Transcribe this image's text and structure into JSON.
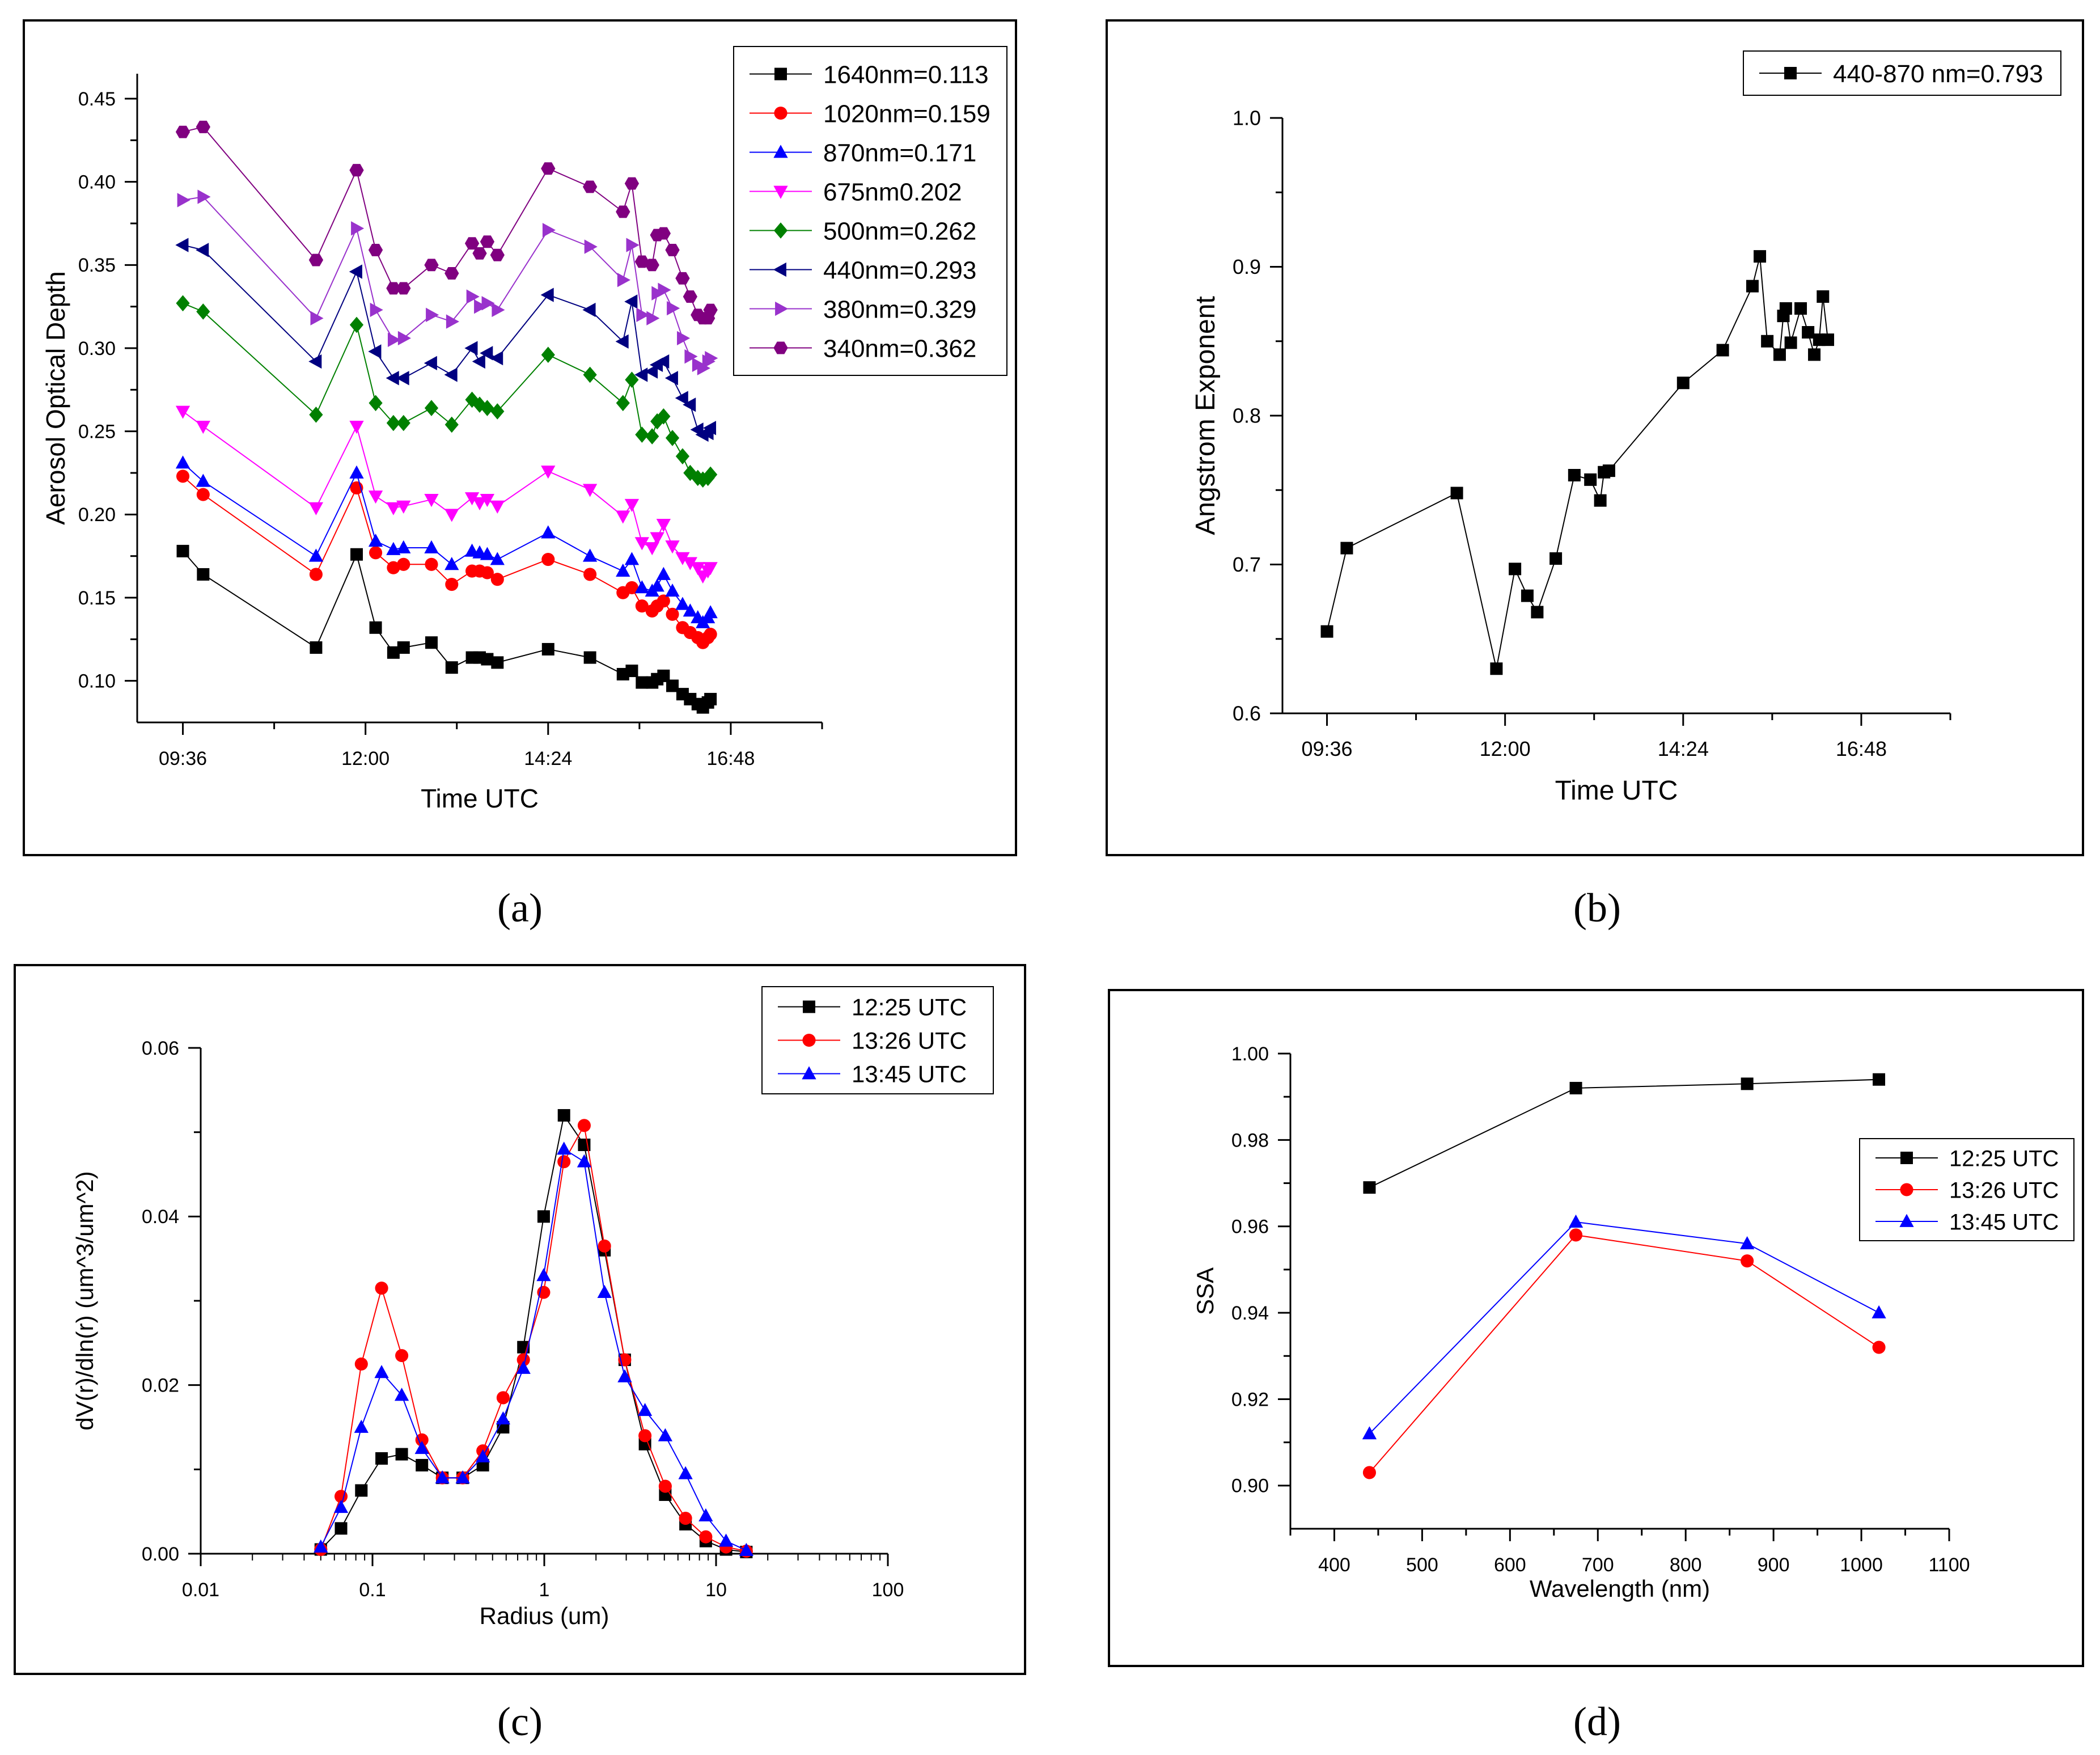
{
  "captions": [
    "(a)",
    "(b)",
    "(c)",
    "(d)"
  ],
  "chart_data": [
    {
      "type": "line",
      "xlabel": "Time UTC",
      "ylabel": "Aerosol Optical Depth",
      "xlim": [
        540,
        1080
      ],
      "ylim": [
        0.075,
        0.465
      ],
      "xticks": [
        576,
        720,
        864,
        1008
      ],
      "xtick_labels": [
        "09:36",
        "12:00",
        "14:24",
        "16:48"
      ],
      "yticks": [
        0.1,
        0.15,
        0.2,
        0.25,
        0.3,
        0.35,
        0.4,
        0.45
      ],
      "ytick_labels": [
        "0.10",
        "0.15",
        "0.20",
        "0.25",
        "0.30",
        "0.35",
        "0.40",
        "0.45"
      ],
      "legend_position": "top-right",
      "x": [
        576,
        592,
        681,
        713,
        728,
        742,
        750,
        772,
        788,
        804,
        810,
        816,
        824,
        864,
        897,
        923,
        930,
        938,
        946,
        950,
        955,
        962,
        970,
        976,
        982,
        986,
        990,
        992
      ],
      "series": [
        {
          "name": "1640nm=0.113",
          "color": "#000000",
          "marker": "square",
          "values": [
            0.178,
            0.164,
            0.12,
            0.176,
            0.132,
            0.117,
            0.12,
            0.123,
            0.108,
            0.114,
            0.114,
            0.113,
            0.111,
            0.119,
            0.114,
            0.104,
            0.106,
            0.099,
            0.099,
            0.101,
            0.103,
            0.097,
            0.092,
            0.089,
            0.086,
            0.084,
            0.087,
            0.089
          ]
        },
        {
          "name": "1020nm=0.159",
          "color": "#ff0000",
          "marker": "circle",
          "values": [
            0.223,
            0.212,
            0.164,
            0.216,
            0.177,
            0.168,
            0.17,
            0.17,
            0.158,
            0.166,
            0.166,
            0.165,
            0.161,
            0.173,
            0.164,
            0.153,
            0.156,
            0.145,
            0.142,
            0.145,
            0.148,
            0.14,
            0.132,
            0.129,
            0.126,
            0.123,
            0.126,
            0.128
          ]
        },
        {
          "name": "870nm=0.171",
          "color": "#0000ff",
          "marker": "triangle-up",
          "values": [
            0.231,
            0.22,
            0.175,
            0.225,
            0.184,
            0.179,
            0.18,
            0.18,
            0.17,
            0.178,
            0.177,
            0.176,
            0.173,
            0.189,
            0.175,
            0.166,
            0.173,
            0.156,
            0.154,
            0.157,
            0.164,
            0.154,
            0.146,
            0.142,
            0.138,
            0.135,
            0.138,
            0.141
          ]
        },
        {
          "name": "675nm0.202",
          "color": "#ff00ff",
          "marker": "triangle-down",
          "values": [
            0.262,
            0.253,
            0.204,
            0.253,
            0.211,
            0.204,
            0.205,
            0.209,
            0.2,
            0.21,
            0.207,
            0.209,
            0.205,
            0.226,
            0.215,
            0.199,
            0.206,
            0.183,
            0.18,
            0.186,
            0.194,
            0.181,
            0.174,
            0.171,
            0.168,
            0.163,
            0.166,
            0.168
          ]
        },
        {
          "name": "500nm=0.262",
          "color": "#008000",
          "marker": "diamond",
          "values": [
            0.327,
            0.322,
            0.26,
            0.314,
            0.267,
            0.255,
            0.255,
            0.264,
            0.254,
            0.269,
            0.266,
            0.264,
            0.262,
            0.296,
            0.284,
            0.267,
            0.281,
            0.248,
            0.247,
            0.256,
            0.259,
            0.246,
            0.235,
            0.225,
            0.222,
            0.221,
            0.222,
            0.224
          ]
        },
        {
          "name": "440nm=0.293",
          "color": "#000080",
          "marker": "triangle-left",
          "values": [
            0.362,
            0.359,
            0.292,
            0.346,
            0.298,
            0.282,
            0.282,
            0.291,
            0.284,
            0.3,
            0.292,
            0.297,
            0.294,
            0.332,
            0.323,
            0.304,
            0.328,
            0.284,
            0.286,
            0.29,
            0.292,
            0.282,
            0.27,
            0.266,
            0.251,
            0.248,
            0.249,
            0.252
          ]
        },
        {
          "name": "380nm=0.329",
          "color": "#9932cc",
          "marker": "triangle-right",
          "values": [
            0.389,
            0.391,
            0.318,
            0.372,
            0.323,
            0.305,
            0.306,
            0.32,
            0.316,
            0.331,
            0.325,
            0.327,
            0.323,
            0.371,
            0.361,
            0.341,
            0.362,
            0.32,
            0.318,
            0.333,
            0.335,
            0.324,
            0.306,
            0.295,
            0.29,
            0.288,
            0.292,
            0.294
          ]
        },
        {
          "name": "340nm=0.362",
          "color": "#800080",
          "marker": "hexagon",
          "values": [
            0.43,
            0.433,
            0.353,
            0.407,
            0.359,
            0.336,
            0.336,
            0.35,
            0.345,
            0.363,
            0.357,
            0.364,
            0.356,
            0.408,
            0.397,
            0.382,
            0.399,
            0.352,
            0.35,
            0.368,
            0.369,
            0.359,
            0.342,
            0.331,
            0.32,
            0.318,
            0.318,
            0.323
          ]
        }
      ]
    },
    {
      "type": "line",
      "xlabel": "Time UTC",
      "ylabel": "Angstrom Exponent",
      "xlim": [
        540,
        1080
      ],
      "ylim": [
        0.6,
        1.0
      ],
      "xticks": [
        576,
        720,
        864,
        1008
      ],
      "xtick_labels": [
        "09:36",
        "12:00",
        "14:24",
        "16:48"
      ],
      "yticks": [
        0.6,
        0.7,
        0.8,
        0.9,
        1.0
      ],
      "ytick_labels": [
        "0.6",
        "0.7",
        "0.8",
        "0.9",
        "1.0"
      ],
      "legend_position": "top-right",
      "series": [
        {
          "name": "440-870 nm=0.793",
          "color": "#000000",
          "marker": "square",
          "x": [
            576,
            592,
            681,
            713,
            728,
            738,
            746,
            761,
            776,
            789,
            797,
            800,
            804,
            864,
            896,
            920,
            926,
            932,
            942,
            945,
            947,
            951,
            959,
            965,
            970,
            974,
            977,
            981
          ],
          "values": [
            0.655,
            0.711,
            0.748,
            0.63,
            0.697,
            0.679,
            0.668,
            0.704,
            0.76,
            0.757,
            0.743,
            0.762,
            0.763,
            0.822,
            0.844,
            0.887,
            0.907,
            0.85,
            0.841,
            0.867,
            0.872,
            0.849,
            0.872,
            0.856,
            0.841,
            0.851,
            0.88,
            0.851
          ]
        }
      ]
    },
    {
      "type": "line",
      "xlabel": "Radius (um)",
      "ylabel": "dV(r)/dln(r) (um^3/um^2)",
      "xscale": "log",
      "xlim": [
        0.01,
        100
      ],
      "ylim": [
        0,
        0.06
      ],
      "xticks": [
        0.01,
        0.1,
        1,
        10,
        100
      ],
      "xtick_labels": [
        "0.01",
        "0.1",
        "1",
        "10",
        "100"
      ],
      "yticks": [
        0,
        0.02,
        0.04,
        0.06
      ],
      "ytick_labels": [
        "0.00",
        "0.02",
        "0.04",
        "0.06"
      ],
      "legend_position": "top-right",
      "x": [
        0.05,
        0.0656,
        0.0861,
        0.113,
        0.148,
        0.194,
        0.255,
        0.335,
        0.439,
        0.576,
        0.756,
        0.992,
        1.302,
        1.708,
        2.241,
        2.94,
        3.857,
        5.061,
        6.641,
        8.713,
        11.43,
        15.0
      ],
      "series": [
        {
          "name": "12:25 UTC",
          "color": "#000000",
          "marker": "square",
          "values": [
            0.0005,
            0.003,
            0.0075,
            0.0113,
            0.0118,
            0.0105,
            0.009,
            0.009,
            0.0105,
            0.015,
            0.0245,
            0.04,
            0.052,
            0.0485,
            0.036,
            0.023,
            0.013,
            0.007,
            0.0035,
            0.0015,
            0.0005,
            0.0002
          ]
        },
        {
          "name": "13:26 UTC",
          "color": "#ff0000",
          "marker": "circle",
          "values": [
            0.0005,
            0.0068,
            0.0225,
            0.0315,
            0.0235,
            0.0135,
            0.009,
            0.009,
            0.0122,
            0.0185,
            0.023,
            0.031,
            0.0465,
            0.0508,
            0.0365,
            0.023,
            0.014,
            0.008,
            0.0042,
            0.002,
            0.0008,
            0.0003
          ]
        },
        {
          "name": "13:45 UTC",
          "color": "#0000ff",
          "marker": "triangle-up",
          "values": [
            0.0008,
            0.0055,
            0.015,
            0.0215,
            0.0188,
            0.0125,
            0.009,
            0.009,
            0.0115,
            0.016,
            0.022,
            0.033,
            0.048,
            0.0465,
            0.031,
            0.021,
            0.017,
            0.014,
            0.0095,
            0.0045,
            0.0015,
            0.0004
          ]
        }
      ]
    },
    {
      "type": "line",
      "xlabel": "Wavelength (nm)",
      "ylabel": "SSA",
      "xlim": [
        350,
        1100
      ],
      "ylim": [
        0.89,
        1.0
      ],
      "xticks": [
        400,
        500,
        600,
        700,
        800,
        900,
        1000,
        1100
      ],
      "xtick_labels": [
        "400",
        "500",
        "600",
        "700",
        "800",
        "900",
        "1000",
        "1100"
      ],
      "yticks": [
        0.9,
        0.92,
        0.94,
        0.96,
        0.98,
        1.0
      ],
      "ytick_labels": [
        "0.90",
        "0.92",
        "0.94",
        "0.96",
        "0.98",
        "1.00"
      ],
      "legend_position": "right",
      "x": [
        440,
        675,
        870,
        1020
      ],
      "series": [
        {
          "name": "12:25 UTC",
          "color": "#000000",
          "marker": "square",
          "values": [
            0.969,
            0.992,
            0.993,
            0.994
          ]
        },
        {
          "name": "13:26 UTC",
          "color": "#ff0000",
          "marker": "circle",
          "values": [
            0.903,
            0.958,
            0.952,
            0.932
          ]
        },
        {
          "name": "13:45 UTC",
          "color": "#0000ff",
          "marker": "triangle-up",
          "values": [
            0.912,
            0.961,
            0.956,
            0.94
          ]
        }
      ]
    }
  ]
}
